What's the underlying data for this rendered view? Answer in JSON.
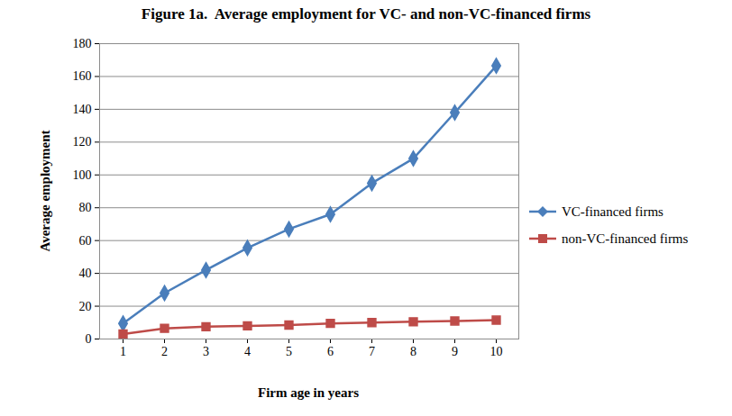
{
  "chart_data": {
    "type": "line",
    "title": "Figure 1a.  Average employment for VC- and non-VC-financed firms",
    "x_label": "Firm age in years",
    "y_label": "Average employment",
    "categories": [
      "1",
      "2",
      "3",
      "4",
      "5",
      "6",
      "7",
      "8",
      "9",
      "10"
    ],
    "series": [
      {
        "name": "VC-financed firms",
        "color": "#4a7ebb",
        "marker": "diamond",
        "values": [
          9.5,
          28,
          42,
          55.5,
          67,
          76,
          95,
          110,
          138,
          166.5
        ]
      },
      {
        "name": "non-VC-financed firms",
        "color": "#be4b48",
        "marker": "square",
        "values": [
          3,
          6.5,
          7.5,
          8,
          8.5,
          9.5,
          10,
          10.5,
          11,
          11.5
        ]
      }
    ],
    "ylim": [
      0,
      180
    ],
    "yticks": [
      0,
      20,
      40,
      60,
      80,
      100,
      120,
      140,
      160,
      180
    ],
    "grid": true,
    "legend": "right"
  }
}
